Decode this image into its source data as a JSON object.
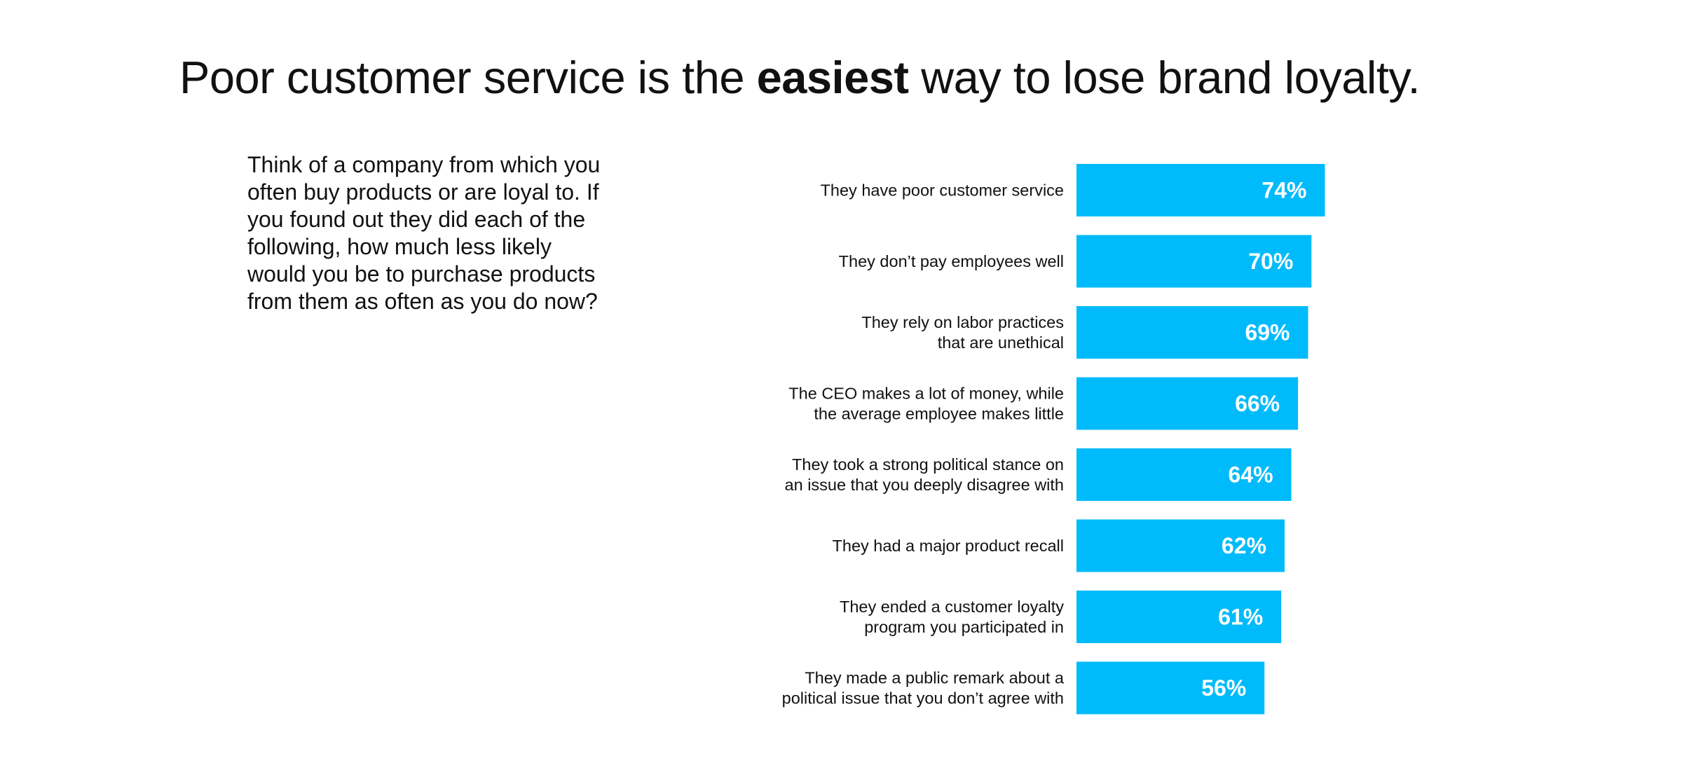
{
  "title": {
    "before": "Poor customer service is the ",
    "bold": "easiest",
    "after": " way to lose brand loyalty."
  },
  "question": "Think of a company from which you often buy products or are loyal to. If you found out they did each of the following, how much less likely would you be to purchase products from them as often as you do now?",
  "colors": {
    "bar": "#00BBFB",
    "value_text": "#ffffff"
  },
  "chart_data": {
    "type": "bar",
    "orientation": "horizontal",
    "title": "Poor customer service is the easiest way to lose brand loyalty.",
    "categories": [
      [
        "They have poor customer service"
      ],
      [
        "They don’t pay employees well"
      ],
      [
        "They rely on labor practices",
        "that are unethical"
      ],
      [
        "The CEO makes a lot of money, while",
        "the average employee makes little"
      ],
      [
        "They took a strong political stance on",
        "an issue that you deeply disagree with"
      ],
      [
        "They had a major product recall"
      ],
      [
        "They ended a customer loyalty",
        "program you participated in"
      ],
      [
        "They made a public remark about a",
        "political issue that you don’t agree with"
      ]
    ],
    "values": [
      74,
      70,
      69,
      66,
      64,
      62,
      61,
      56
    ],
    "value_labels": [
      "74%",
      "70%",
      "69%",
      "66%",
      "64%",
      "62%",
      "61%",
      "56%"
    ],
    "unit": "%",
    "xlabel": "",
    "ylabel": "",
    "grid": false,
    "legend": "none"
  }
}
